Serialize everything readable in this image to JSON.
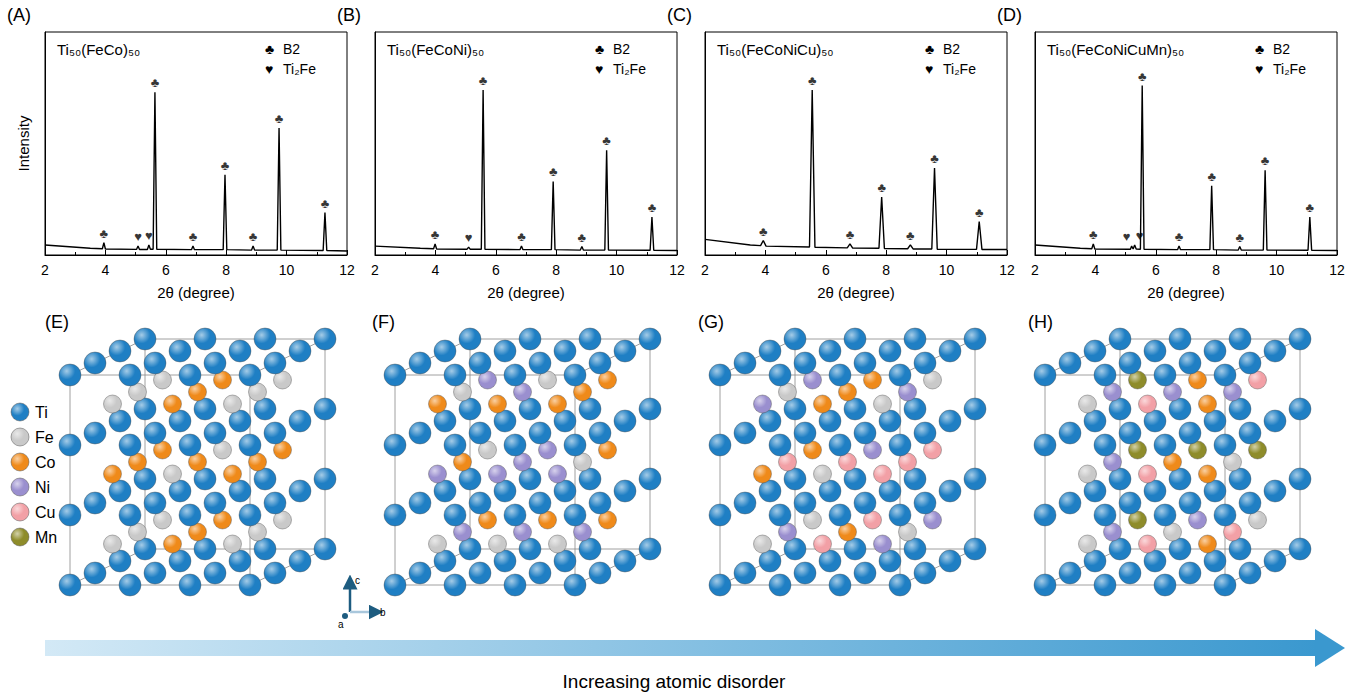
{
  "chart_data": [
    {
      "panel": "(A)",
      "type": "line",
      "title": "Ti₅₀(FeCo)₅₀",
      "x_label": "2θ (degree)",
      "y_label": "Intensity",
      "xlim": [
        2,
        12
      ],
      "xticks": [
        2,
        4,
        6,
        8,
        10,
        12
      ],
      "ylim": [
        0,
        1
      ],
      "tick_labels": "x",
      "grid": false,
      "color": "#000000",
      "legend": "upper right",
      "phases": [
        {
          "marker": "♣",
          "name": "B2"
        },
        {
          "marker": "♥",
          "name": "Ti₂Fe"
        }
      ],
      "x": [
        2,
        3.5,
        3.9,
        3.95,
        4.0,
        5.03,
        5.08,
        5.13,
        5.39,
        5.44,
        5.49,
        5.58,
        5.64,
        5.7,
        6.85,
        6.9,
        6.95,
        7.9,
        7.96,
        8.02,
        8.84,
        8.89,
        8.94,
        9.69,
        9.75,
        9.81,
        11.21,
        11.27,
        11.33,
        12
      ],
      "values": [
        0.045,
        0.03,
        0.028,
        0.055,
        0.027,
        0.025,
        0.04,
        0.025,
        0.025,
        0.045,
        0.026,
        0.026,
        0.73,
        0.026,
        0.024,
        0.04,
        0.024,
        0.024,
        0.36,
        0.024,
        0.022,
        0.04,
        0.022,
        0.022,
        0.57,
        0.022,
        0.02,
        0.19,
        0.02,
        0.018
      ],
      "annotations": [
        {
          "x": 3.95,
          "y": 0.055,
          "text": "♣"
        },
        {
          "x": 5.08,
          "y": 0.04,
          "text": "♥"
        },
        {
          "x": 5.44,
          "y": 0.045,
          "text": "♥"
        },
        {
          "x": 5.64,
          "y": 0.73,
          "text": "♣"
        },
        {
          "x": 6.9,
          "y": 0.04,
          "text": "♣"
        },
        {
          "x": 7.96,
          "y": 0.36,
          "text": "♣"
        },
        {
          "x": 8.89,
          "y": 0.04,
          "text": "♣"
        },
        {
          "x": 9.75,
          "y": 0.57,
          "text": "♣"
        },
        {
          "x": 11.27,
          "y": 0.19,
          "text": "♣"
        }
      ]
    },
    {
      "panel": "(B)",
      "type": "line",
      "title": "Ti₅₀(FeCoNi)₅₀",
      "x_label": "2θ (degree)",
      "xlim": [
        2,
        12
      ],
      "xticks": [
        2,
        4,
        6,
        8,
        10,
        12
      ],
      "ylim": [
        0,
        1
      ],
      "tick_labels": "x",
      "grid": false,
      "color": "#000000",
      "legend": "upper right",
      "phases": [
        {
          "marker": "♣",
          "name": "B2"
        },
        {
          "marker": "♥",
          "name": "Ti₂Fe"
        }
      ],
      "x": [
        2,
        3.5,
        3.94,
        3.99,
        4.04,
        5.05,
        5.1,
        5.15,
        5.52,
        5.58,
        5.64,
        6.8,
        6.85,
        6.9,
        7.84,
        7.9,
        7.96,
        8.8,
        8.85,
        8.9,
        9.61,
        9.67,
        9.73,
        11.11,
        11.17,
        11.23,
        12
      ],
      "values": [
        0.04,
        0.03,
        0.028,
        0.05,
        0.027,
        0.026,
        0.035,
        0.026,
        0.026,
        0.74,
        0.026,
        0.024,
        0.04,
        0.024,
        0.024,
        0.33,
        0.024,
        0.022,
        0.038,
        0.022,
        0.022,
        0.47,
        0.022,
        0.021,
        0.17,
        0.021,
        0.02
      ],
      "annotations": [
        {
          "x": 3.99,
          "y": 0.05,
          "text": "♣"
        },
        {
          "x": 5.1,
          "y": 0.035,
          "text": "♥"
        },
        {
          "x": 5.58,
          "y": 0.74,
          "text": "♣"
        },
        {
          "x": 6.85,
          "y": 0.04,
          "text": "♣"
        },
        {
          "x": 7.9,
          "y": 0.33,
          "text": "♣"
        },
        {
          "x": 8.85,
          "y": 0.038,
          "text": "♣"
        },
        {
          "x": 9.67,
          "y": 0.47,
          "text": "♣"
        },
        {
          "x": 11.17,
          "y": 0.17,
          "text": "♣"
        }
      ]
    },
    {
      "panel": "(C)",
      "type": "line",
      "title": "Ti₅₀(FeCoNiCu)₅₀",
      "x_label": "2θ (degree)",
      "xlim": [
        2,
        12
      ],
      "xticks": [
        2,
        4,
        6,
        8,
        10,
        12
      ],
      "ylim": [
        0,
        1
      ],
      "tick_labels": "x",
      "grid": false,
      "color": "#000000",
      "legend": "upper right",
      "phases": [
        {
          "marker": "♣",
          "name": "B2"
        },
        {
          "marker": "♥",
          "name": "Ti₂Fe"
        }
      ],
      "x": [
        2,
        3.5,
        3.84,
        3.93,
        4.02,
        5.46,
        5.55,
        5.64,
        6.71,
        6.8,
        6.89,
        7.76,
        7.85,
        7.94,
        8.71,
        8.8,
        8.89,
        9.51,
        9.6,
        9.69,
        10.99,
        11.08,
        11.17,
        12
      ],
      "values": [
        0.07,
        0.045,
        0.042,
        0.065,
        0.04,
        0.036,
        0.74,
        0.035,
        0.032,
        0.05,
        0.031,
        0.03,
        0.26,
        0.029,
        0.028,
        0.045,
        0.027,
        0.027,
        0.39,
        0.026,
        0.025,
        0.15,
        0.025,
        0.025
      ],
      "annotations": [
        {
          "x": 3.93,
          "y": 0.065,
          "text": "♣"
        },
        {
          "x": 5.55,
          "y": 0.74,
          "text": "♣"
        },
        {
          "x": 6.8,
          "y": 0.05,
          "text": "♣"
        },
        {
          "x": 7.85,
          "y": 0.26,
          "text": "♣"
        },
        {
          "x": 8.8,
          "y": 0.045,
          "text": "♣"
        },
        {
          "x": 9.6,
          "y": 0.39,
          "text": "♣"
        },
        {
          "x": 11.08,
          "y": 0.15,
          "text": "♣"
        }
      ]
    },
    {
      "panel": "(D)",
      "type": "line",
      "title": "Ti₅₀(FeCoNiCuMn)₅₀",
      "x_label": "2θ (degree)",
      "xlim": [
        2,
        12
      ],
      "xticks": [
        2,
        4,
        6,
        8,
        10,
        12
      ],
      "ylim": [
        0,
        1
      ],
      "tick_labels": "x",
      "grid": false,
      "color": "#000000",
      "legend": "upper right",
      "phases": [
        {
          "marker": "♣",
          "name": "B2"
        },
        {
          "marker": "♥",
          "name": "Ti₂Fe"
        }
      ],
      "x": [
        2,
        3.5,
        3.88,
        3.93,
        3.98,
        5.16,
        5.2,
        5.25,
        5.3,
        5.35,
        5.49,
        5.55,
        5.61,
        6.72,
        6.77,
        6.82,
        7.79,
        7.85,
        7.91,
        8.73,
        8.78,
        8.83,
        9.56,
        9.62,
        9.68,
        11.04,
        11.1,
        11.16,
        12
      ],
      "values": [
        0.045,
        0.03,
        0.028,
        0.05,
        0.027,
        0.026,
        0.04,
        0.027,
        0.045,
        0.027,
        0.026,
        0.76,
        0.026,
        0.024,
        0.04,
        0.024,
        0.024,
        0.31,
        0.024,
        0.022,
        0.038,
        0.022,
        0.022,
        0.38,
        0.022,
        0.021,
        0.17,
        0.021,
        0.02
      ],
      "annotations": [
        {
          "x": 3.93,
          "y": 0.05,
          "text": "♣"
        },
        {
          "x": 5.2,
          "y": 0.04,
          "text": "♥"
        },
        {
          "x": 5.3,
          "y": 0.045,
          "text": "♥"
        },
        {
          "x": 5.55,
          "y": 0.76,
          "text": "♣"
        },
        {
          "x": 6.77,
          "y": 0.04,
          "text": "♣"
        },
        {
          "x": 7.85,
          "y": 0.31,
          "text": "♣"
        },
        {
          "x": 8.78,
          "y": 0.038,
          "text": "♣"
        },
        {
          "x": 9.62,
          "y": 0.38,
          "text": "♣"
        },
        {
          "x": 11.1,
          "y": 0.17,
          "text": "♣"
        }
      ]
    }
  ],
  "structures": [
    {
      "panel": "(E)",
      "elements": [
        "Ti",
        "Fe",
        "Co"
      ]
    },
    {
      "panel": "(F)",
      "elements": [
        "Ti",
        "Fe",
        "Co",
        "Ni"
      ]
    },
    {
      "panel": "(G)",
      "elements": [
        "Ti",
        "Fe",
        "Co",
        "Ni",
        "Cu"
      ]
    },
    {
      "panel": "(H)",
      "elements": [
        "Ti",
        "Fe",
        "Co",
        "Ni",
        "Cu",
        "Mn"
      ]
    }
  ],
  "element_key": [
    {
      "label": "Ti",
      "color": "#1f7fc4"
    },
    {
      "label": "Fe",
      "color": "#c9c9c9"
    },
    {
      "label": "Co",
      "color": "#ef8a1a"
    },
    {
      "label": "Ni",
      "color": "#9a8fcf"
    },
    {
      "label": "Cu",
      "color": "#f2a0a6"
    },
    {
      "label": "Mn",
      "color": "#8e8c2a"
    }
  ],
  "axis_triad": [
    "a",
    "b",
    "c"
  ],
  "arrow_label": "Increasing atomic disorder"
}
